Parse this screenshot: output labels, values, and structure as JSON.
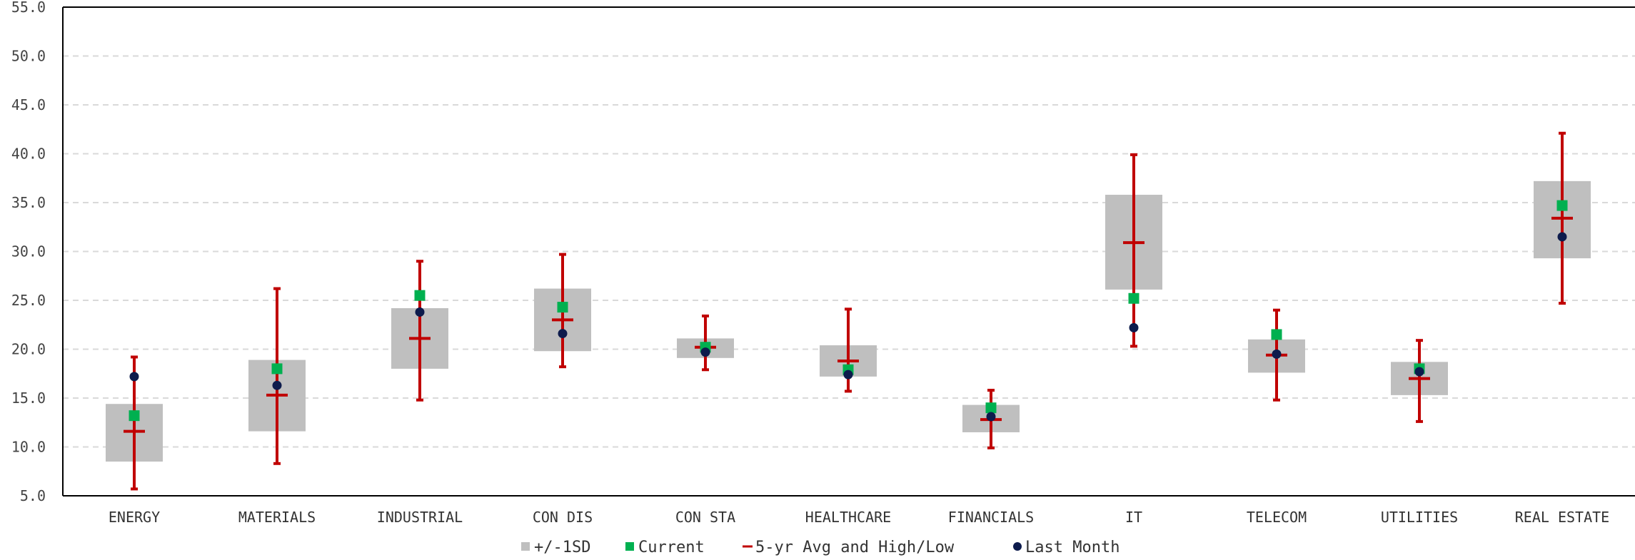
{
  "chart_data": {
    "type": "box",
    "categories": [
      "ENERGY",
      "MATERIALS",
      "INDUSTRIAL",
      "CON DIS",
      "CON STA",
      "HEALTHCARE",
      "FINANCIALS",
      "IT",
      "TELECOM",
      "UTILITIES",
      "REAL ESTATE"
    ],
    "ylim": [
      5.0,
      55.0
    ],
    "yticks": [
      "5.0",
      "10.0",
      "15.0",
      "20.0",
      "25.0",
      "30.0",
      "35.0",
      "40.0",
      "45.0",
      "50.0",
      "55.0"
    ],
    "grid": true,
    "legend_position": "bottom",
    "series": [
      {
        "name": "+/-1SD",
        "color": "#bfbfbf",
        "lower": [
          8.5,
          11.6,
          18.0,
          19.8,
          19.1,
          17.2,
          11.5,
          26.1,
          17.6,
          15.3,
          29.3
        ],
        "upper": [
          14.4,
          18.9,
          24.2,
          26.2,
          21.1,
          20.4,
          14.3,
          35.8,
          21.0,
          18.7,
          37.2
        ]
      },
      {
        "name": "Current",
        "color": "#00b050",
        "values": [
          13.2,
          18.0,
          25.5,
          24.3,
          20.2,
          17.9,
          14.0,
          25.2,
          21.5,
          18.0,
          34.7
        ]
      },
      {
        "name": "5-yr Avg and High/Low",
        "color": "#c00000",
        "avg": [
          11.6,
          15.3,
          21.1,
          23.0,
          20.2,
          18.8,
          12.8,
          30.9,
          19.4,
          17.0,
          33.4
        ],
        "high": [
          19.2,
          26.2,
          29.0,
          29.7,
          23.4,
          24.1,
          15.8,
          39.9,
          24.0,
          20.9,
          42.1
        ],
        "low": [
          5.7,
          8.3,
          14.8,
          18.2,
          17.9,
          15.7,
          9.9,
          20.3,
          14.8,
          12.6,
          24.7
        ]
      },
      {
        "name": "Last Month",
        "color": "#0d1b4c",
        "values": [
          17.2,
          16.3,
          23.8,
          21.6,
          19.7,
          17.4,
          13.1,
          22.2,
          19.5,
          17.7,
          31.5
        ]
      }
    ]
  }
}
